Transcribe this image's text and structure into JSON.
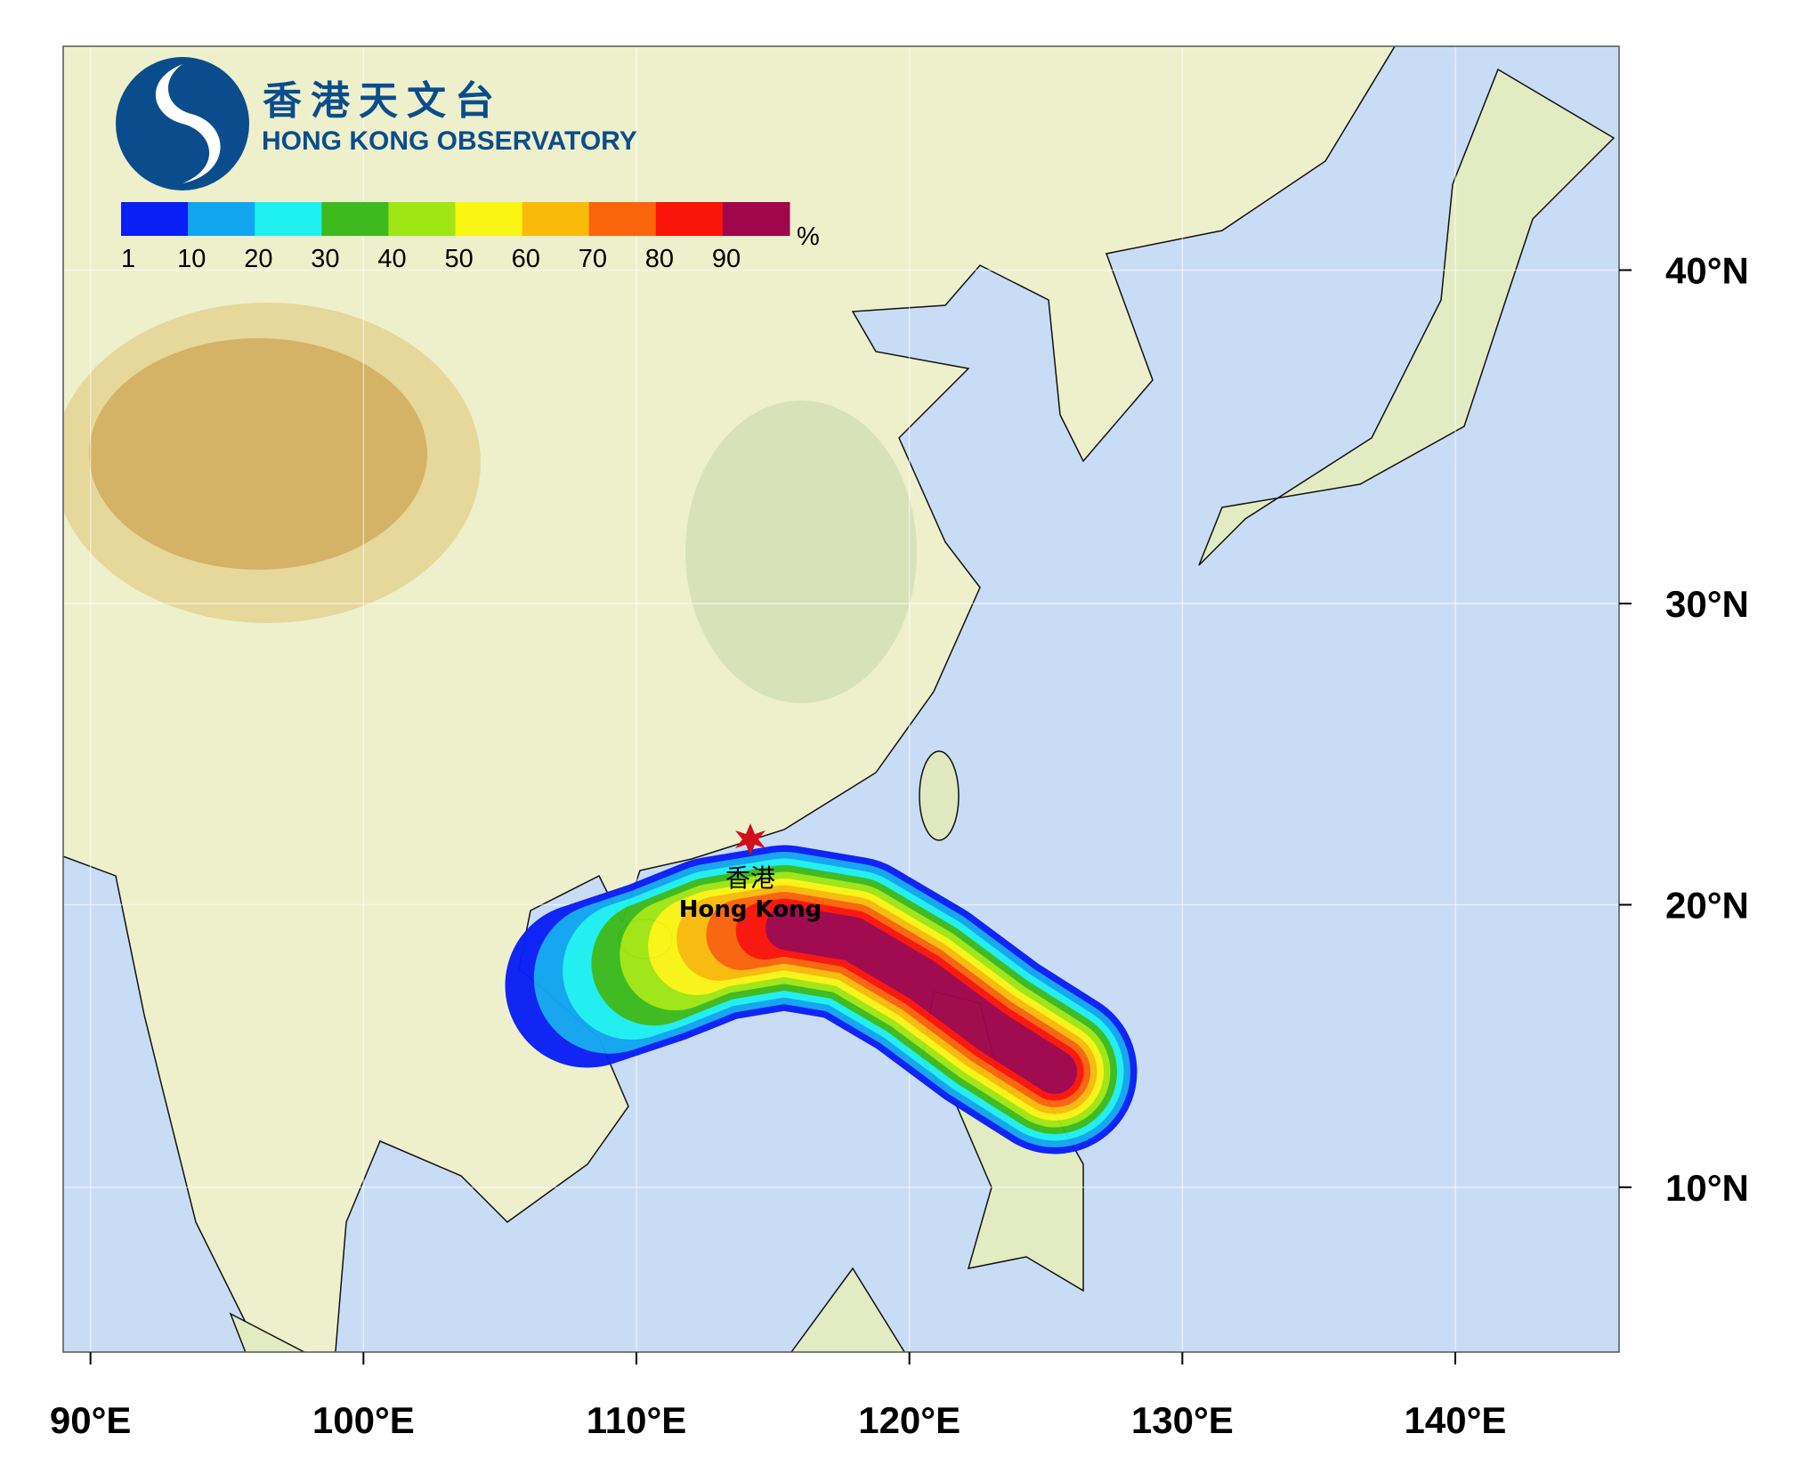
{
  "header": {
    "title_zh": "香港天文台",
    "title_en": "HONG KONG OBSERVATORY"
  },
  "colorbar": {
    "colors": [
      "#0a1ff5",
      "#12a5f0",
      "#1ef0f0",
      "#3cba1e",
      "#a0e614",
      "#faf514",
      "#faba0a",
      "#fa640a",
      "#fa140a",
      "#a0064b"
    ],
    "ticks": [
      1,
      10,
      20,
      30,
      40,
      50,
      60,
      70,
      80,
      90
    ],
    "unit": "%"
  },
  "place": {
    "name_zh": "香港",
    "name_en": "Hong Kong"
  },
  "map": {
    "lon_range": [
      89,
      146
    ],
    "lat_range": [
      4,
      46
    ],
    "lon_ticks": [
      {
        "value": 90,
        "label": "90°E"
      },
      {
        "value": 100,
        "label": "100°E"
      },
      {
        "value": 110,
        "label": "110°E"
      },
      {
        "value": 120,
        "label": "120°E"
      },
      {
        "value": 130,
        "label": "130°E"
      },
      {
        "value": 140,
        "label": "140°E"
      }
    ],
    "lat_ticks": [
      {
        "value": 10,
        "label": "10°N"
      },
      {
        "value": 20,
        "label": "20°N"
      },
      {
        "value": 30,
        "label": "30°N"
      },
      {
        "value": 40,
        "label": "40°N"
      }
    ],
    "grid": true
  }
}
